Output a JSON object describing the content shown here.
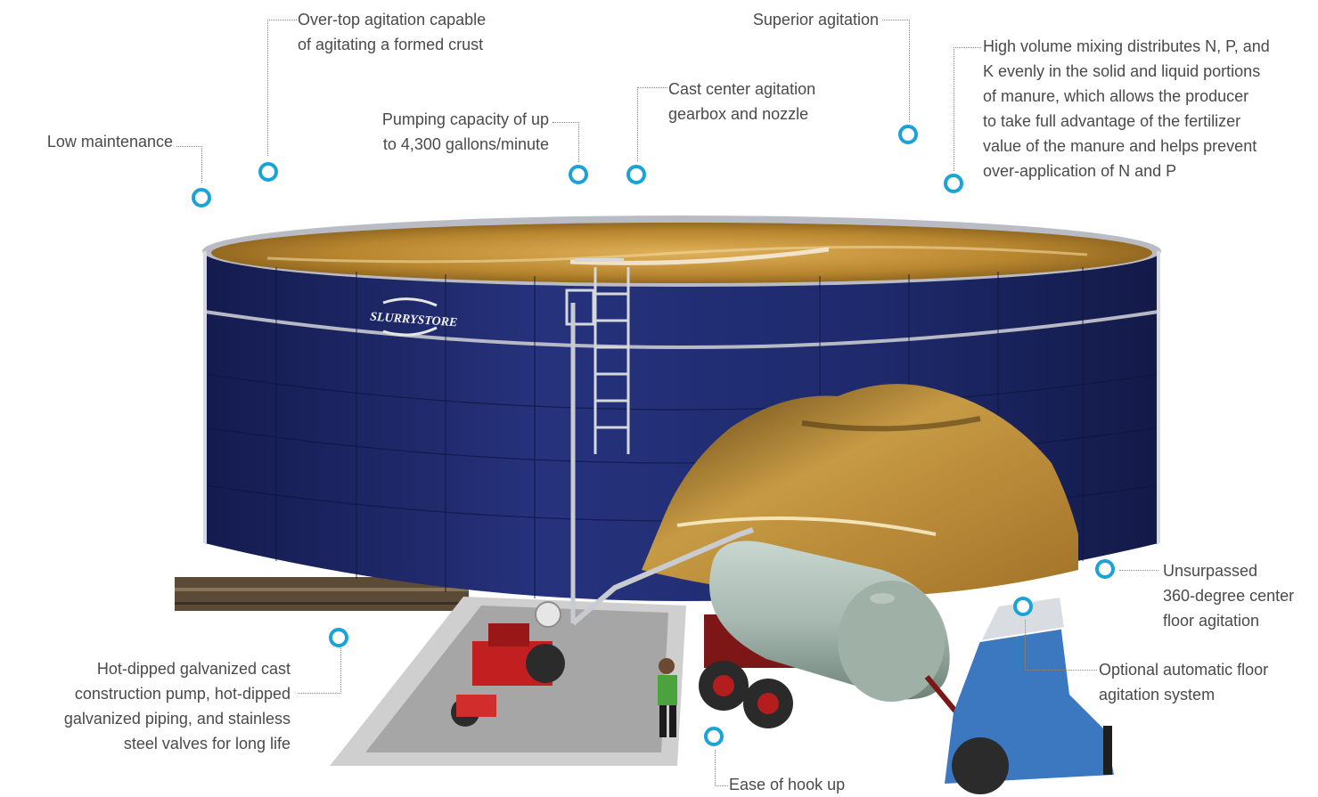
{
  "brand": {
    "logo_text": "SLURRYSTORE"
  },
  "colors": {
    "accent": "#1ba3d8",
    "tank": "#1f2a6e",
    "manure": "#b8892e",
    "text": "#4a4a4a"
  },
  "callouts": {
    "low_maintenance": [
      "Low maintenance"
    ],
    "over_top": [
      "Over-top agitation capable",
      "of agitating a formed crust"
    ],
    "pumping": [
      "Pumping capacity of up",
      "to 4,300 gallons/minute"
    ],
    "cast_center": [
      "Cast center agitation",
      "gearbox and nozzle"
    ],
    "superior": [
      "Superior agitation"
    ],
    "high_volume": [
      "High volume mixing distributes N, P, and",
      "K evenly in the solid and liquid portions",
      "of manure, which allows the producer",
      "to take full advantage of the fertilizer",
      "value of the manure and helps prevent",
      "over-application of N and P"
    ],
    "unsurpassed": [
      "Unsurpassed",
      "360-degree  center",
      "floor agitation"
    ],
    "optional": [
      "Optional automatic floor",
      "agitation system"
    ],
    "hot_dipped": [
      "Hot-dipped galvanized cast",
      "construction pump, hot-dipped",
      "galvanized piping, and stainless",
      "steel valves for long life"
    ],
    "ease": [
      "Ease of hook up"
    ]
  }
}
